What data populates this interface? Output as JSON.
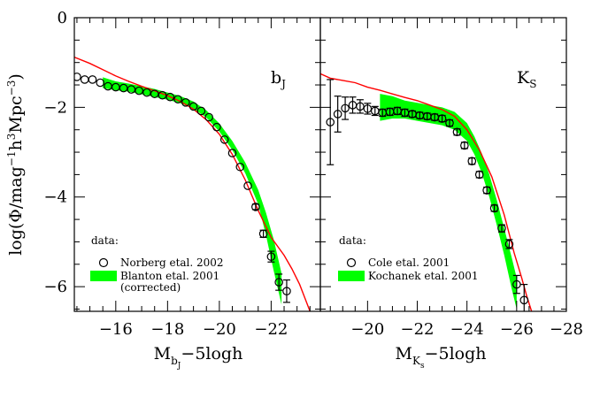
{
  "figure": {
    "ylabel_parts": [
      "log(Φ/mag",
      "−1",
      "h",
      "3",
      "Mpc",
      "−3",
      ")"
    ]
  },
  "chart_data": [
    {
      "type": "line",
      "panel_label": "b",
      "panel_label_sub": "J",
      "xlabel": "M",
      "xlabel_sub": "b",
      "xlabel_subsub": "J",
      "xlabel_suffix": "−5logh",
      "xlim": [
        -14.4,
        -23.9
      ],
      "ylim": [
        -6.55,
        0
      ],
      "xticks": [
        -16,
        -18,
        -20,
        -22
      ],
      "xtick_labels": [
        "−16",
        "−18",
        "−20",
        "−22"
      ],
      "yticks": [
        0,
        -2,
        -4,
        -6
      ],
      "ytick_labels": [
        "0",
        "−2",
        "−4",
        "−6"
      ],
      "legend_title": "data:",
      "legend": [
        {
          "marker": "open-circle",
          "label": "Norberg etal. 2002"
        },
        {
          "marker": "green-band",
          "label": "Blanton etal. 2001",
          "label2": "(corrected)"
        }
      ],
      "series": [
        {
          "style": "red-line",
          "color": "#ff0000",
          "x": [
            -14.4,
            -15.0,
            -15.5,
            -16.0,
            -16.5,
            -17.0,
            -17.5,
            -18.0,
            -18.5,
            -19.0,
            -19.5,
            -20.0,
            -20.5,
            -21.0,
            -21.5,
            -22.0,
            -22.5,
            -22.8,
            -23.1,
            -23.3,
            -23.5
          ],
          "y": [
            -0.88,
            -1.02,
            -1.16,
            -1.3,
            -1.42,
            -1.53,
            -1.63,
            -1.74,
            -1.87,
            -2.04,
            -2.28,
            -2.6,
            -3.05,
            -3.62,
            -4.3,
            -4.9,
            -5.3,
            -5.6,
            -5.95,
            -6.25,
            -6.55
          ]
        },
        {
          "style": "green-band",
          "color": "#00ff00",
          "x": [
            -15.5,
            -16.0,
            -16.5,
            -17.0,
            -17.5,
            -18.0,
            -18.5,
            -19.0,
            -19.5,
            -20.0,
            -20.5,
            -21.0,
            -21.5,
            -21.8,
            -22.1,
            -22.4
          ],
          "y": [
            -1.45,
            -1.52,
            -1.56,
            -1.62,
            -1.68,
            -1.75,
            -1.83,
            -1.95,
            -2.15,
            -2.45,
            -2.85,
            -3.35,
            -4.0,
            -4.6,
            -5.3,
            -6.05
          ],
          "band_halfwidth": [
            0.12,
            0.1,
            0.09,
            0.09,
            0.09,
            0.08,
            0.08,
            0.08,
            0.08,
            0.09,
            0.1,
            0.12,
            0.16,
            0.25,
            0.35,
            0.35
          ]
        },
        {
          "style": "open-circles",
          "x": [
            -14.5,
            -14.8,
            -15.1,
            -15.4,
            -15.7,
            -16.0,
            -16.3,
            -16.6,
            -16.9,
            -17.2,
            -17.5,
            -17.8,
            -18.1,
            -18.4,
            -18.7,
            -19.0,
            -19.3,
            -19.6,
            -19.9,
            -20.2,
            -20.5,
            -20.8,
            -21.1,
            -21.4,
            -21.7,
            -22.0,
            -22.3,
            -22.6
          ],
          "y": [
            -1.32,
            -1.38,
            -1.38,
            -1.45,
            -1.53,
            -1.55,
            -1.57,
            -1.6,
            -1.63,
            -1.67,
            -1.7,
            -1.73,
            -1.77,
            -1.82,
            -1.89,
            -1.98,
            -2.08,
            -2.22,
            -2.44,
            -2.72,
            -3.02,
            -3.33,
            -3.75,
            -4.22,
            -4.82,
            -5.33,
            -5.9,
            -6.1
          ],
          "yerr": [
            0.04,
            0.04,
            0.04,
            0.04,
            0.04,
            0.04,
            0.04,
            0.04,
            0.04,
            0.04,
            0.04,
            0.04,
            0.04,
            0.04,
            0.04,
            0.04,
            0.04,
            0.04,
            0.04,
            0.04,
            0.04,
            0.05,
            0.05,
            0.06,
            0.08,
            0.12,
            0.18,
            0.25
          ]
        }
      ]
    },
    {
      "type": "line",
      "panel_label": "K",
      "panel_label_sub": "S",
      "xlabel": "M",
      "xlabel_sub": "K",
      "xlabel_subsub": "s",
      "xlabel_suffix": "−5logh",
      "xlim": [
        -18.1,
        -28.0
      ],
      "ylim": [
        -6.55,
        0
      ],
      "xticks": [
        -20,
        -22,
        -24,
        -26,
        -28
      ],
      "xtick_labels": [
        "−20",
        "−22",
        "−24",
        "−26",
        "−28"
      ],
      "yticks": [
        0,
        -2,
        -4,
        -6
      ],
      "ytick_labels": [],
      "legend_title": "data:",
      "legend": [
        {
          "marker": "open-circle",
          "label": "Cole etal. 2001"
        },
        {
          "marker": "green-band",
          "label": "Kochanek etal. 2001"
        }
      ],
      "series": [
        {
          "style": "red-line",
          "color": "#ff0000",
          "x": [
            -18.1,
            -18.5,
            -19.0,
            -19.5,
            -20.0,
            -20.5,
            -21.0,
            -21.5,
            -22.0,
            -22.5,
            -23.0,
            -23.5,
            -24.0,
            -24.5,
            -25.0,
            -25.5,
            -25.9,
            -26.2,
            -26.4,
            -26.6
          ],
          "y": [
            -1.25,
            -1.35,
            -1.4,
            -1.45,
            -1.55,
            -1.62,
            -1.7,
            -1.78,
            -1.85,
            -1.95,
            -2.05,
            -2.2,
            -2.5,
            -2.95,
            -3.55,
            -4.4,
            -5.25,
            -5.8,
            -6.2,
            -6.55
          ]
        },
        {
          "style": "green-band",
          "color": "#00ff00",
          "x": [
            -20.5,
            -21.0,
            -21.5,
            -22.0,
            -22.5,
            -23.0,
            -23.5,
            -24.0,
            -24.3,
            -24.6,
            -24.9,
            -25.2,
            -25.5,
            -25.8,
            -26.0
          ],
          "y": [
            -2.0,
            -2.0,
            -2.05,
            -2.1,
            -2.15,
            -2.2,
            -2.3,
            -2.55,
            -2.85,
            -3.25,
            -3.75,
            -4.35,
            -5.0,
            -5.7,
            -6.15
          ],
          "band_halfwidth": [
            0.3,
            0.25,
            0.2,
            0.2,
            0.2,
            0.2,
            0.2,
            0.2,
            0.2,
            0.22,
            0.25,
            0.28,
            0.3,
            0.35,
            0.35
          ]
        },
        {
          "style": "open-circles",
          "x": [
            -18.5,
            -18.8,
            -19.1,
            -19.4,
            -19.7,
            -20.0,
            -20.3,
            -20.6,
            -20.9,
            -21.2,
            -21.5,
            -21.8,
            -22.1,
            -22.4,
            -22.7,
            -23.0,
            -23.3,
            -23.6,
            -23.9,
            -24.2,
            -24.5,
            -24.8,
            -25.1,
            -25.4,
            -25.7,
            -26.0,
            -26.3
          ],
          "y": [
            -2.33,
            -2.15,
            -2.02,
            -1.95,
            -1.98,
            -2.03,
            -2.08,
            -2.12,
            -2.1,
            -2.08,
            -2.12,
            -2.15,
            -2.18,
            -2.2,
            -2.22,
            -2.25,
            -2.35,
            -2.55,
            -2.85,
            -3.2,
            -3.5,
            -3.85,
            -4.25,
            -4.7,
            -5.05,
            -5.95,
            -6.3
          ],
          "yerr": [
            0.95,
            0.4,
            0.25,
            0.18,
            0.15,
            0.12,
            0.1,
            0.08,
            0.08,
            0.08,
            0.08,
            0.07,
            0.07,
            0.07,
            0.07,
            0.07,
            0.07,
            0.07,
            0.07,
            0.07,
            0.07,
            0.07,
            0.07,
            0.08,
            0.1,
            0.2,
            0.35
          ]
        }
      ]
    }
  ]
}
